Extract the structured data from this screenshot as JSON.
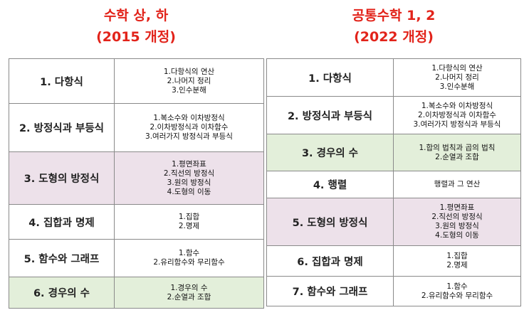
{
  "left": {
    "title": [
      "수학 상, 하",
      "(2015 개정)"
    ],
    "rows": [
      {
        "topic": "1. 다항식",
        "subs": [
          "1.다항식의 연산",
          "2.나머지 정리",
          "3.인수분해"
        ],
        "highlight": "none"
      },
      {
        "topic": "2. 방정식과 부등식",
        "subs": [
          "1.복소수와 이차방정식",
          "2.이차방정식과 이차함수",
          "3.여러가지 방정식과 부등식"
        ],
        "highlight": "none"
      },
      {
        "topic": "3. 도형의 방정식",
        "subs": [
          "1.평면좌표",
          "2.직선의 방정식",
          "3.원의 방정식",
          "4.도형의 이동"
        ],
        "highlight": "pink"
      },
      {
        "topic": "4. 집합과 명제",
        "subs": [
          "1.집합",
          "2.명제"
        ],
        "highlight": "none"
      },
      {
        "topic": "5. 함수와 그래프",
        "subs": [
          "1.함수",
          "2.유리함수와 무리함수"
        ],
        "highlight": "none"
      },
      {
        "topic": "6. 경우의 수",
        "subs": [
          "1.경우의 수",
          "2.순열과 조합"
        ],
        "highlight": "green"
      }
    ]
  },
  "right": {
    "title": [
      "공통수학 1, 2",
      "(2022 개정)"
    ],
    "rows": [
      {
        "topic": "1. 다항식",
        "subs": [
          "1.다항식의 연산",
          "2.나머지 정리",
          "3.인수분해"
        ],
        "highlight": "none"
      },
      {
        "topic": "2. 방정식과 부등식",
        "subs": [
          "1.복소수와 이차방정식",
          "2.이차방정식과 이차함수",
          "3.여러가지 방정식과 부등식"
        ],
        "highlight": "none"
      },
      {
        "topic": "3. 경우의 수",
        "subs": [
          "1.합의 법칙과 곱의 법칙",
          "2.순열과 조합"
        ],
        "highlight": "green"
      },
      {
        "topic": "4. 행렬",
        "subs": [
          "행렬과 그 연산"
        ],
        "highlight": "none"
      },
      {
        "topic": "5. 도형의 방정식",
        "subs": [
          "1.평면좌표",
          "2.직선의 방정식",
          "3.원의 방정식",
          "4.도형의 이동"
        ],
        "highlight": "pink"
      },
      {
        "topic": "6. 집합과 명제",
        "subs": [
          "1.집합",
          "2.명제"
        ],
        "highlight": "none"
      },
      {
        "topic": "7. 함수와 그래프",
        "subs": [
          "1.함수",
          "2.유리함수와 무리함수"
        ],
        "highlight": "none"
      }
    ]
  },
  "colors": {
    "title": "#e2231a",
    "pink": "#ede1ea",
    "green": "#e3efda",
    "border": "#8a8a8a"
  }
}
